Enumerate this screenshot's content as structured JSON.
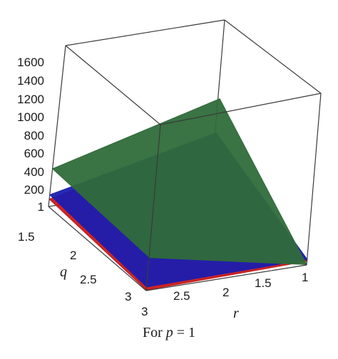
{
  "chart_data": {
    "type": "surface3d",
    "caption": {
      "prefix": "For ",
      "variable": "p",
      "suffix": " = 1"
    },
    "axes": {
      "z": {
        "ticks": [
          "1",
          "200",
          "400",
          "600",
          "800",
          "1000",
          "1200",
          "1400",
          "1600"
        ]
      },
      "q": {
        "label": "q",
        "ticks": [
          "1.5",
          "2",
          "2.5",
          "3"
        ]
      },
      "r": {
        "label": "r",
        "ticks": [
          "3",
          "2.5",
          "2",
          "1.5",
          "1"
        ]
      }
    },
    "q_range": [
      1,
      3
    ],
    "r_range": [
      1,
      3
    ],
    "z_range": [
      1,
      1700
    ],
    "surfaces": [
      {
        "color": "#2f6b3a",
        "corners": {
          "q1_r3": 400,
          "q1_r1": 860,
          "q3_r1": 5,
          "q3_r3": 350
        }
      },
      {
        "color": "#1b1eb0",
        "corners": {
          "q1_r3": 125,
          "q1_r1": 500,
          "q3_r1": 60,
          "q3_r3": 40
        }
      },
      {
        "color": "#c81818",
        "corners": {
          "q1_r3": 80,
          "q1_r1": 475,
          "q3_r1": 40,
          "q3_r3": 8
        }
      }
    ]
  }
}
